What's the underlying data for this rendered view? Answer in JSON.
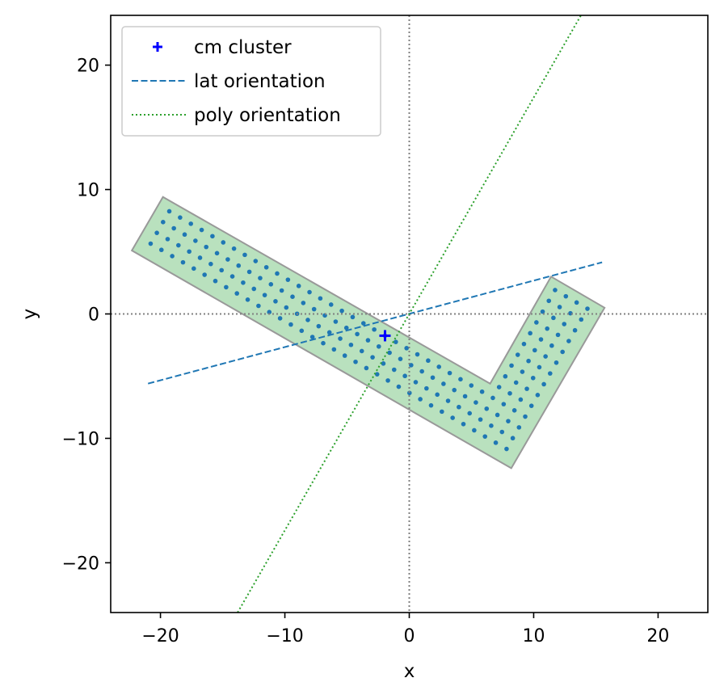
{
  "chart_data": {
    "type": "scatter",
    "title": "",
    "xlabel": "x",
    "ylabel": "y",
    "xlim": [
      -24,
      24
    ],
    "ylim": [
      -24,
      24
    ],
    "xticks": [
      -20,
      -10,
      0,
      10,
      20
    ],
    "yticks": [
      -20,
      -10,
      0,
      10,
      20
    ],
    "xtick_labels": [
      "−20",
      "−10",
      "0",
      "10",
      "20"
    ],
    "ytick_labels": [
      "−20",
      "−10",
      "0",
      "10",
      "20"
    ],
    "grid": false,
    "legend": {
      "placement": "upper-left"
    },
    "reference_lines": [
      {
        "axis": "y",
        "value": 0,
        "style": "dotted",
        "color": "#808080"
      },
      {
        "axis": "x",
        "value": 0,
        "style": "dotted",
        "color": "#808080"
      }
    ],
    "polygon": {
      "vertices": [
        [
          -22.3,
          5.1
        ],
        [
          -19.8,
          9.4
        ],
        [
          6.5,
          -5.6
        ],
        [
          11.4,
          3.0
        ],
        [
          15.7,
          0.5
        ],
        [
          8.2,
          -12.4
        ]
      ],
      "fill": "#b9e1be",
      "edge": "#999999"
    },
    "lattice": {
      "color": "#1f77b4",
      "origin": [
        -1.95,
        -1.75
      ],
      "a1": [
        0.867,
        -0.5
      ],
      "a2": [
        0.5,
        0.867
      ]
    },
    "series": [
      {
        "name": "cm cluster",
        "kind": "marker",
        "marker": "+",
        "color": "#0000ff",
        "points": [
          [
            -1.95,
            -1.75
          ]
        ]
      },
      {
        "name": "lat orientation",
        "kind": "line",
        "style": "dashed",
        "color": "#1f77b4",
        "points": [
          [
            -21.0,
            -5.6
          ],
          [
            15.5,
            4.15
          ]
        ]
      },
      {
        "name": "poly orientation",
        "kind": "line",
        "style": "dotted",
        "color": "#2ca02c",
        "points": [
          [
            -13.8,
            -24.0
          ],
          [
            13.8,
            24.0
          ]
        ]
      }
    ]
  }
}
